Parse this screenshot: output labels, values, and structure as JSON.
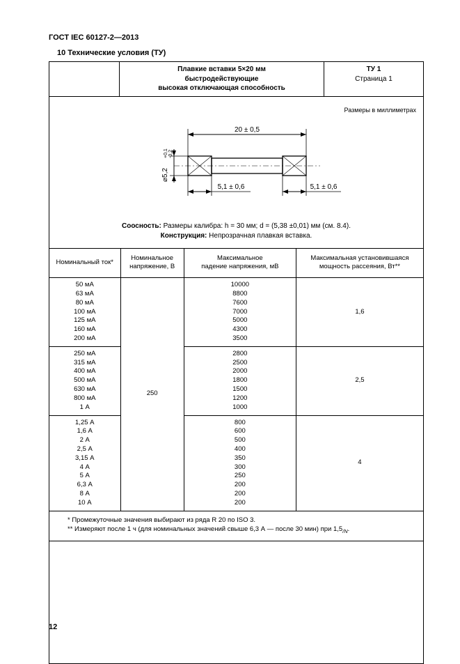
{
  "doc_header": "ГОСТ IEC 60127-2—2013",
  "section_title": "10 Технические условия (ТУ)",
  "top_mid": {
    "l1": "Плавкие вставки 5×20 мм",
    "l2": "быстродействующие",
    "l3": "высокая отключающая способность"
  },
  "top_right": {
    "tu": "ТУ 1",
    "page": "Страница 1"
  },
  "dim_note": "Размеры в миллиметрах",
  "drawing": {
    "len_label": "20 ± 0,5",
    "cap_label_left": "5,1 ± 0,6",
    "cap_label_right": "5,1 ± 0,6",
    "dia_label": "⌀5,2",
    "dia_tol_top": "+0,1",
    "dia_tol_bot": "-0,2"
  },
  "mid_text": {
    "coax_label": "Соосность:",
    "coax_text": " Размеры калибра: h = 30 мм; d = (5,38 ±0,01) мм (см. 8.4).",
    "cons_label": "Конструкция:",
    "cons_text": " Непрозрачная плавкая вставка."
  },
  "table": {
    "headers": [
      "Номинальный ток*",
      "Номинальное\nнапряжение, В",
      "Максимальное\nпадение напряжения, мВ",
      "Максимальная установившаяся\nмощность рассеяния, Вт**"
    ],
    "voltage": "250",
    "groups": [
      {
        "currents": [
          "50 мА",
          "63 мА",
          "80 мА",
          "100 мА",
          "125 мА",
          "160 мА",
          "200 мА"
        ],
        "drops": [
          "10000",
          "8800",
          "7600",
          "7000",
          "5000",
          "4300",
          "3500"
        ],
        "power": "1,6"
      },
      {
        "currents": [
          "250 мА",
          "315 мА",
          "400 мА",
          "500 мА",
          "630 мА",
          "800 мА",
          "1 А"
        ],
        "drops": [
          "2800",
          "2500",
          "2000",
          "1800",
          "1500",
          "1200",
          "1000"
        ],
        "power": "2,5"
      },
      {
        "currents": [
          "1,25 А",
          "1,6 А",
          "2 А",
          "2,5 А",
          "3,15 А",
          "4 А",
          "5 А",
          "6,3 А",
          "8 А",
          "10 А"
        ],
        "drops": [
          "800",
          "600",
          "500",
          "400",
          "350",
          "300",
          "250",
          "200",
          "200",
          "200"
        ],
        "power": "4"
      }
    ]
  },
  "footnotes": {
    "f1": "* Промежуточные значения выбирают из ряда R 20 по ISO 3.",
    "f2_pre": "** Измеряют после 1 ч (для номинальных значений свыше 6,3 А — после 30 мин) при 1,5",
    "f2_sub": "/N",
    "f2_post": "."
  },
  "page_number": "12",
  "colors": {
    "text": "#000000",
    "bg": "#ffffff",
    "line": "#000000"
  }
}
